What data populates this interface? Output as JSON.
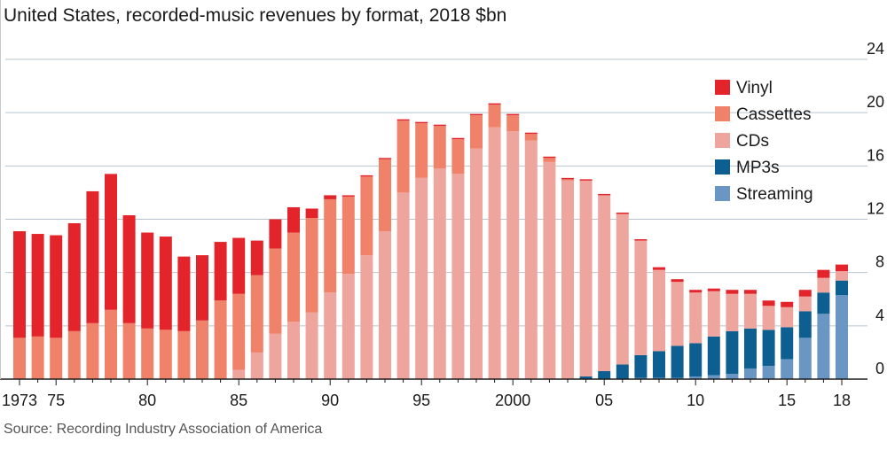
{
  "chart_data": {
    "type": "bar",
    "stacked": true,
    "title": "United States, recorded-music revenues by format, 2018 $bn",
    "source": "Source: Recording Industry Association of America",
    "ylim": [
      0,
      24
    ],
    "y_ticks": [
      0,
      4,
      8,
      12,
      16,
      20,
      24
    ],
    "y_axis_side": "right",
    "grid": true,
    "legend_position": "right",
    "x": [
      1973,
      1974,
      1975,
      1976,
      1977,
      1978,
      1979,
      1980,
      1981,
      1982,
      1983,
      1984,
      1985,
      1986,
      1987,
      1988,
      1989,
      1990,
      1991,
      1992,
      1993,
      1994,
      1995,
      1996,
      1997,
      1998,
      1999,
      2000,
      2001,
      2002,
      2003,
      2004,
      2005,
      2006,
      2007,
      2008,
      2009,
      2010,
      2011,
      2012,
      2013,
      2014,
      2015,
      2016,
      2017,
      2018
    ],
    "x_tick_labels": [
      {
        "year": 1973,
        "label": "1973"
      },
      {
        "year": 1975,
        "label": "75"
      },
      {
        "year": 1980,
        "label": "80"
      },
      {
        "year": 1985,
        "label": "85"
      },
      {
        "year": 1990,
        "label": "90"
      },
      {
        "year": 1995,
        "label": "95"
      },
      {
        "year": 2000,
        "label": "2000"
      },
      {
        "year": 2005,
        "label": "05"
      },
      {
        "year": 2010,
        "label": "10"
      },
      {
        "year": 2015,
        "label": "15"
      },
      {
        "year": 2018,
        "label": "18"
      }
    ],
    "series": [
      {
        "name": "Streaming",
        "color": "#6a96c4",
        "values": [
          0,
          0,
          0,
          0,
          0,
          0,
          0,
          0,
          0,
          0,
          0,
          0,
          0,
          0,
          0,
          0,
          0,
          0,
          0,
          0,
          0,
          0,
          0,
          0,
          0,
          0,
          0,
          0,
          0,
          0,
          0,
          0,
          0,
          0,
          0.1,
          0.1,
          0.1,
          0.2,
          0.3,
          0.4,
          0.8,
          1.0,
          1.5,
          3.1,
          4.9,
          6.3
        ]
      },
      {
        "name": "MP3s",
        "color": "#0e5f91",
        "values": [
          0,
          0,
          0,
          0,
          0,
          0,
          0,
          0,
          0,
          0,
          0,
          0,
          0,
          0,
          0,
          0,
          0,
          0,
          0,
          0,
          0,
          0,
          0,
          0,
          0,
          0,
          0,
          0,
          0,
          0,
          0,
          0.2,
          0.6,
          1.1,
          1.7,
          2.0,
          2.4,
          2.5,
          2.9,
          3.2,
          3.0,
          2.7,
          2.4,
          2.0,
          1.6,
          1.1
        ]
      },
      {
        "name": "CDs",
        "color": "#eea59e",
        "values": [
          0,
          0,
          0,
          0,
          0,
          0,
          0,
          0,
          0,
          0,
          0,
          0,
          0.7,
          2.0,
          3.4,
          4.3,
          5.0,
          6.5,
          7.9,
          9.3,
          11.1,
          14.0,
          15.1,
          15.8,
          15.4,
          17.3,
          18.9,
          18.6,
          17.9,
          16.3,
          14.9,
          14.7,
          13.2,
          11.3,
          8.6,
          6.1,
          4.8,
          3.8,
          3.4,
          2.8,
          2.6,
          1.8,
          1.5,
          1.1,
          1.1,
          0.7
        ]
      },
      {
        "name": "Cassettes",
        "color": "#f0826a",
        "values": [
          3.1,
          3.2,
          3.1,
          3.6,
          4.2,
          5.2,
          4.2,
          3.8,
          3.7,
          3.6,
          4.4,
          5.9,
          5.7,
          5.8,
          6.4,
          6.7,
          7.1,
          7.0,
          5.8,
          5.9,
          5.4,
          5.4,
          4.1,
          3.2,
          2.6,
          2.5,
          1.7,
          1.2,
          0.5,
          0.3,
          0.1,
          0,
          0,
          0,
          0,
          0,
          0,
          0,
          0,
          0,
          0,
          0,
          0,
          0,
          0,
          0
        ]
      },
      {
        "name": "Vinyl",
        "color": "#e3242b",
        "values": [
          8.0,
          7.7,
          7.7,
          8.1,
          9.9,
          10.2,
          8.1,
          7.2,
          7.0,
          5.6,
          4.9,
          4.4,
          4.2,
          2.6,
          2.2,
          1.9,
          0.7,
          0.3,
          0.1,
          0.1,
          0.1,
          0.1,
          0.1,
          0.1,
          0.1,
          0.1,
          0.1,
          0.1,
          0.1,
          0.1,
          0.1,
          0.1,
          0.1,
          0.1,
          0.1,
          0.2,
          0.2,
          0.2,
          0.2,
          0.3,
          0.3,
          0.4,
          0.4,
          0.5,
          0.6,
          0.5
        ]
      }
    ],
    "legend": [
      {
        "label": "Vinyl",
        "color": "#e3242b"
      },
      {
        "label": "Cassettes",
        "color": "#f0826a"
      },
      {
        "label": "CDs",
        "color": "#eea59e"
      },
      {
        "label": "MP3s",
        "color": "#0e5f91"
      },
      {
        "label": "Streaming",
        "color": "#6a96c4"
      }
    ]
  }
}
